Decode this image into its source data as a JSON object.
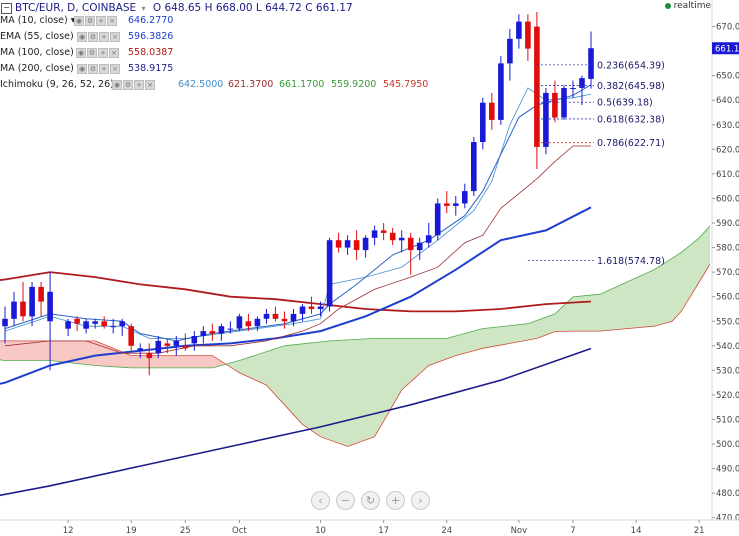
{
  "header": {
    "symbol": "BTC/EUR, D, COINBASE",
    "o_label": "O",
    "o": "648.65",
    "h_label": "H",
    "h": "668.00",
    "l_label": "L",
    "l": "644.72",
    "c_label": "C",
    "c": "661.17",
    "realtime": "realtime"
  },
  "indicators": [
    {
      "name": "MA (10, close)",
      "values": [
        "646.2770"
      ],
      "colors": [
        "#1d3fcf"
      ]
    },
    {
      "name": "EMA (55, close)",
      "values": [
        "596.3826"
      ],
      "colors": [
        "#1d3fcf"
      ]
    },
    {
      "name": "MA (100, close)",
      "values": [
        "558.0387"
      ],
      "colors": [
        "#b01a1a"
      ]
    },
    {
      "name": "MA (200, close)",
      "values": [
        "538.9175"
      ],
      "colors": [
        "#1d1d8a"
      ]
    },
    {
      "name": "Ichimoku (9, 26, 52, 26)",
      "values": [
        "642.5000",
        "621.3700",
        "661.1700",
        "559.9200",
        "545.7950"
      ],
      "colors": [
        "#3f8fd0",
        "#a03030",
        "#3a9a3a",
        "#3a9a3a",
        "#c0392b"
      ]
    }
  ],
  "price_label": "661.1",
  "nav_icons": [
    "chevron-left-icon",
    "zoom-out-icon",
    "reset-icon",
    "zoom-in-icon",
    "chevron-right-icon"
  ],
  "nav_glyphs": [
    "‹",
    "−",
    "↻",
    "+",
    "›"
  ],
  "colors": {
    "up": "#1a1ad6",
    "down": "#e00d0d",
    "cloud_bull": "#cfe6c4",
    "cloud_bear": "#f8c9c4"
  },
  "chart_data": {
    "type": "candlestick",
    "y_ticks": [
      470,
      480,
      490,
      500,
      510,
      520,
      530,
      540,
      550,
      560,
      570,
      580,
      590,
      600,
      610,
      620,
      630,
      640,
      650,
      660,
      670
    ],
    "ylim": [
      465,
      680
    ],
    "x_ticks": [
      {
        "label": "12",
        "day": 12
      },
      {
        "label": "19",
        "day": 19
      },
      {
        "label": "25",
        "day": 25
      },
      {
        "label": "Oct",
        "day": 31
      },
      {
        "label": "10",
        "day": 40
      },
      {
        "label": "17",
        "day": 47
      },
      {
        "label": "24",
        "day": 54
      },
      {
        "label": "Nov",
        "day": 62
      },
      {
        "label": "7",
        "day": 68
      },
      {
        "label": "14",
        "day": 75
      },
      {
        "label": "21",
        "day": 82
      }
    ],
    "candles": [
      [
        5,
        548,
        556,
        541,
        551
      ],
      [
        6,
        551,
        562,
        548,
        558
      ],
      [
        7,
        558,
        566,
        550,
        552
      ],
      [
        8,
        552,
        566,
        548,
        564
      ],
      [
        9,
        564,
        566,
        552,
        558
      ],
      [
        10,
        550,
        570,
        530,
        562
      ],
      [
        12,
        547,
        551,
        544,
        550
      ],
      [
        13,
        551,
        552,
        546,
        549
      ],
      [
        14,
        547,
        551,
        545,
        550
      ],
      [
        15,
        549,
        551,
        547,
        550
      ],
      [
        16,
        550,
        552,
        547,
        548
      ],
      [
        17,
        548,
        551,
        545,
        548
      ],
      [
        18,
        548,
        551,
        544,
        550
      ],
      [
        19,
        548,
        549,
        538,
        540
      ],
      [
        20,
        538,
        541,
        535,
        539
      ],
      [
        21,
        537,
        541,
        528,
        535
      ],
      [
        22,
        537,
        544,
        535,
        542
      ],
      [
        23,
        541,
        543,
        537,
        540
      ],
      [
        24,
        540,
        544,
        536,
        542
      ],
      [
        25,
        540,
        545,
        538,
        539
      ],
      [
        26,
        541,
        546,
        538,
        544
      ],
      [
        27,
        544,
        548,
        541,
        546
      ],
      [
        28,
        546,
        549,
        542,
        545
      ],
      [
        29,
        545,
        549,
        542,
        548
      ],
      [
        30,
        547,
        550,
        545,
        547
      ],
      [
        31,
        547,
        553,
        546,
        552
      ],
      [
        32,
        550,
        553,
        546,
        548
      ],
      [
        33,
        548,
        552,
        546,
        551
      ],
      [
        34,
        551,
        555,
        549,
        553
      ],
      [
        35,
        553,
        556,
        550,
        551
      ],
      [
        36,
        551,
        554,
        547,
        550
      ],
      [
        37,
        550,
        555,
        548,
        553
      ],
      [
        38,
        553,
        557,
        550,
        556
      ],
      [
        39,
        556,
        560,
        553,
        555
      ],
      [
        40,
        555,
        558,
        552,
        556
      ],
      [
        41,
        556,
        584,
        554,
        583
      ],
      [
        42,
        583,
        586,
        578,
        580
      ],
      [
        43,
        580,
        585,
        577,
        583
      ],
      [
        44,
        583,
        587,
        575,
        579
      ],
      [
        45,
        579,
        585,
        576,
        584
      ],
      [
        46,
        584,
        589,
        581,
        587
      ],
      [
        47,
        587,
        590,
        583,
        586
      ],
      [
        48,
        586,
        588,
        581,
        583
      ],
      [
        49,
        583,
        587,
        578,
        584
      ],
      [
        50,
        584,
        586,
        569,
        579
      ],
      [
        51,
        579,
        584,
        575,
        582
      ],
      [
        52,
        582,
        590,
        580,
        585
      ],
      [
        53,
        585,
        600,
        583,
        598
      ],
      [
        54,
        598,
        603,
        594,
        597
      ],
      [
        55,
        597,
        601,
        593,
        598
      ],
      [
        56,
        598,
        606,
        596,
        603
      ],
      [
        57,
        603,
        625,
        601,
        623
      ],
      [
        58,
        623,
        641,
        620,
        639
      ],
      [
        59,
        639,
        643,
        628,
        632
      ],
      [
        60,
        632,
        658,
        630,
        655
      ],
      [
        61,
        655,
        669,
        648,
        665
      ],
      [
        62,
        665,
        675,
        661,
        672
      ],
      [
        63,
        672,
        675,
        656,
        661
      ],
      [
        64,
        670,
        676,
        612,
        621
      ],
      [
        65,
        621,
        645,
        618,
        643
      ],
      [
        66,
        643,
        648,
        631,
        633
      ],
      [
        67,
        633,
        646,
        632,
        645
      ],
      [
        68,
        645,
        648,
        641,
        645
      ],
      [
        69,
        645,
        650,
        638,
        649
      ],
      [
        70,
        648.65,
        668.0,
        644.72,
        661.17
      ]
    ],
    "ma10": [
      [
        5,
        547
      ],
      [
        10,
        553
      ],
      [
        14,
        551
      ],
      [
        18,
        550
      ],
      [
        20,
        545
      ],
      [
        24,
        542
      ],
      [
        28,
        545
      ],
      [
        32,
        547
      ],
      [
        36,
        549
      ],
      [
        40,
        553
      ],
      [
        41,
        557
      ],
      [
        44,
        565
      ],
      [
        48,
        577
      ],
      [
        52,
        583
      ],
      [
        56,
        593
      ],
      [
        58,
        603
      ],
      [
        60,
        618
      ],
      [
        62,
        633
      ],
      [
        64,
        638
      ],
      [
        66,
        640
      ],
      [
        68,
        642
      ],
      [
        70,
        646.277
      ]
    ],
    "ema55": [
      [
        0,
        521
      ],
      [
        5,
        525
      ],
      [
        10,
        532
      ],
      [
        15,
        536
      ],
      [
        20,
        538
      ],
      [
        25,
        540
      ],
      [
        30,
        541
      ],
      [
        35,
        543
      ],
      [
        40,
        546
      ],
      [
        45,
        552
      ],
      [
        50,
        560
      ],
      [
        55,
        571
      ],
      [
        60,
        583
      ],
      [
        65,
        587
      ],
      [
        70,
        596.3826
      ]
    ],
    "ma100": [
      [
        0,
        565
      ],
      [
        5,
        567
      ],
      [
        10,
        570
      ],
      [
        15,
        568
      ],
      [
        20,
        565
      ],
      [
        25,
        563
      ],
      [
        30,
        560
      ],
      [
        35,
        559
      ],
      [
        40,
        557
      ],
      [
        45,
        555
      ],
      [
        50,
        554
      ],
      [
        55,
        554
      ],
      [
        60,
        555
      ],
      [
        65,
        557
      ],
      [
        70,
        558.0387
      ]
    ],
    "ma200": [
      [
        0,
        476
      ],
      [
        10,
        483
      ],
      [
        20,
        491
      ],
      [
        30,
        499
      ],
      [
        40,
        507
      ],
      [
        50,
        516
      ],
      [
        60,
        526
      ],
      [
        70,
        538.9175
      ]
    ],
    "tenkan": [
      [
        5,
        546
      ],
      [
        10,
        552
      ],
      [
        14,
        548
      ],
      [
        18,
        548
      ],
      [
        21,
        543
      ],
      [
        25,
        543
      ],
      [
        29,
        545
      ],
      [
        33,
        547
      ],
      [
        37,
        549
      ],
      [
        40,
        551
      ],
      [
        41,
        565
      ],
      [
        45,
        568
      ],
      [
        49,
        572
      ],
      [
        53,
        583
      ],
      [
        57,
        595
      ],
      [
        59,
        607
      ],
      [
        61,
        630
      ],
      [
        63,
        645
      ],
      [
        65,
        640
      ],
      [
        68,
        641
      ],
      [
        70,
        642.5
      ]
    ],
    "kijun": [
      [
        5,
        540
      ],
      [
        10,
        542
      ],
      [
        14,
        542
      ],
      [
        18,
        537
      ],
      [
        22,
        537
      ],
      [
        26,
        540
      ],
      [
        30,
        540
      ],
      [
        34,
        542
      ],
      [
        38,
        546
      ],
      [
        40,
        549
      ],
      [
        42,
        555
      ],
      [
        46,
        563
      ],
      [
        50,
        568
      ],
      [
        53,
        572
      ],
      [
        56,
        582
      ],
      [
        58,
        585
      ],
      [
        60,
        596
      ],
      [
        62,
        602
      ],
      [
        64,
        608
      ],
      [
        66,
        615
      ],
      [
        68,
        621.37
      ],
      [
        70,
        621.37
      ]
    ],
    "span_a": [
      [
        -2,
        528
      ],
      [
        1,
        536
      ],
      [
        5,
        534
      ],
      [
        10,
        534
      ],
      [
        15,
        532
      ],
      [
        19,
        531
      ],
      [
        24,
        531
      ],
      [
        28,
        531
      ],
      [
        31,
        534
      ],
      [
        36,
        540
      ],
      [
        41,
        542
      ],
      [
        46,
        543
      ],
      [
        51,
        543
      ],
      [
        54,
        543
      ],
      [
        58,
        547
      ],
      [
        63,
        549
      ],
      [
        66,
        553
      ],
      [
        68,
        559.92
      ],
      [
        71,
        561
      ],
      [
        74,
        566
      ],
      [
        77,
        571
      ],
      [
        80,
        578
      ],
      [
        82,
        584
      ],
      [
        84,
        592
      ]
    ],
    "span_b": [
      [
        -2,
        542
      ],
      [
        1,
        542
      ],
      [
        5,
        542
      ],
      [
        10,
        542
      ],
      [
        15,
        542
      ],
      [
        19,
        536
      ],
      [
        24,
        536
      ],
      [
        28,
        536
      ],
      [
        31,
        529
      ],
      [
        34,
        524
      ],
      [
        36,
        516
      ],
      [
        38,
        508
      ],
      [
        40,
        503
      ],
      [
        43,
        499
      ],
      [
        46,
        503
      ],
      [
        49,
        522
      ],
      [
        52,
        532
      ],
      [
        55,
        536
      ],
      [
        58,
        539
      ],
      [
        61,
        541
      ],
      [
        64,
        543
      ],
      [
        66,
        545.795
      ],
      [
        68,
        546
      ],
      [
        71,
        546
      ],
      [
        74,
        547
      ],
      [
        77,
        548
      ],
      [
        79,
        550
      ],
      [
        80,
        554
      ],
      [
        82,
        566
      ],
      [
        84,
        578
      ]
    ],
    "fib_levels": [
      {
        "label": "0.236(654.39)",
        "value": 654.39
      },
      {
        "label": "0.382(645.98)",
        "value": 645.98
      },
      {
        "label": "0.5(639.18)",
        "value": 639.18
      },
      {
        "label": "0.618(632.38)",
        "value": 632.38
      },
      {
        "label": "0.786(622.71)",
        "value": 622.71
      },
      {
        "label": "1.618(574.78)",
        "value": 574.78
      }
    ],
    "last_price": 661.17
  }
}
